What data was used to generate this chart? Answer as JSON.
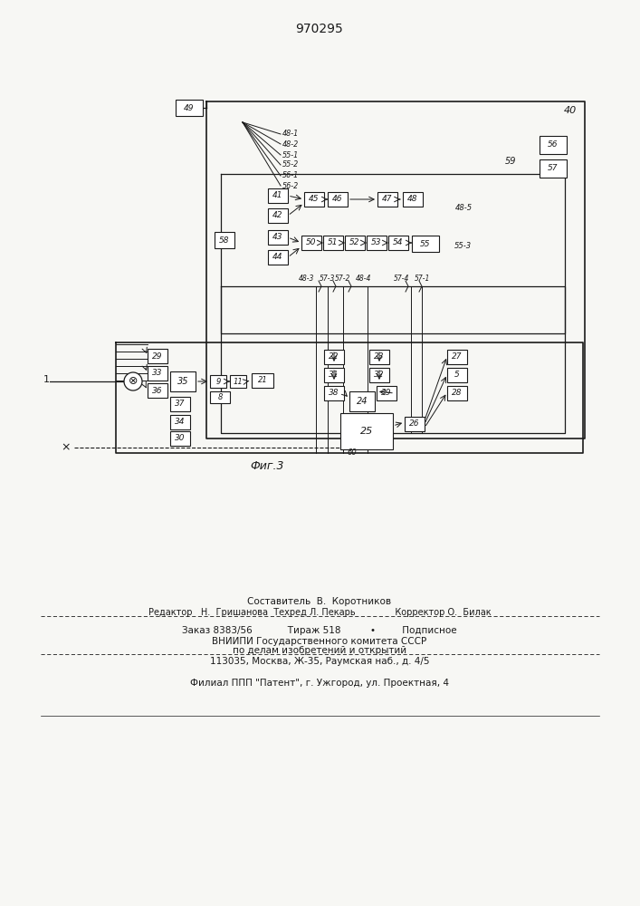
{
  "title": "970295",
  "fig_label": "Фиг.3",
  "lc": "#1a1a1a",
  "bg": "#f7f7f4",
  "bx": "#ffffff",
  "footer_line1": "Составитель  В.  Коротников",
  "footer_line2": "Редактор   Н.  Гришанова  Техред Л. Пекарь              Корректор О.  Билак",
  "footer_line3": "Заказ 8383/56            Тираж 518          •         Подписное",
  "footer_line4": "ВНИИПИ Государственного комитета СССР",
  "footer_line5": "по делам изобретений и открытий",
  "footer_line6": "113035, Москва, Ж-35, Раумская наб., д. 4/5",
  "footer_line7": "Филиал ППП \"Патент\", г. Ужгород, ул. Проектная, 4"
}
